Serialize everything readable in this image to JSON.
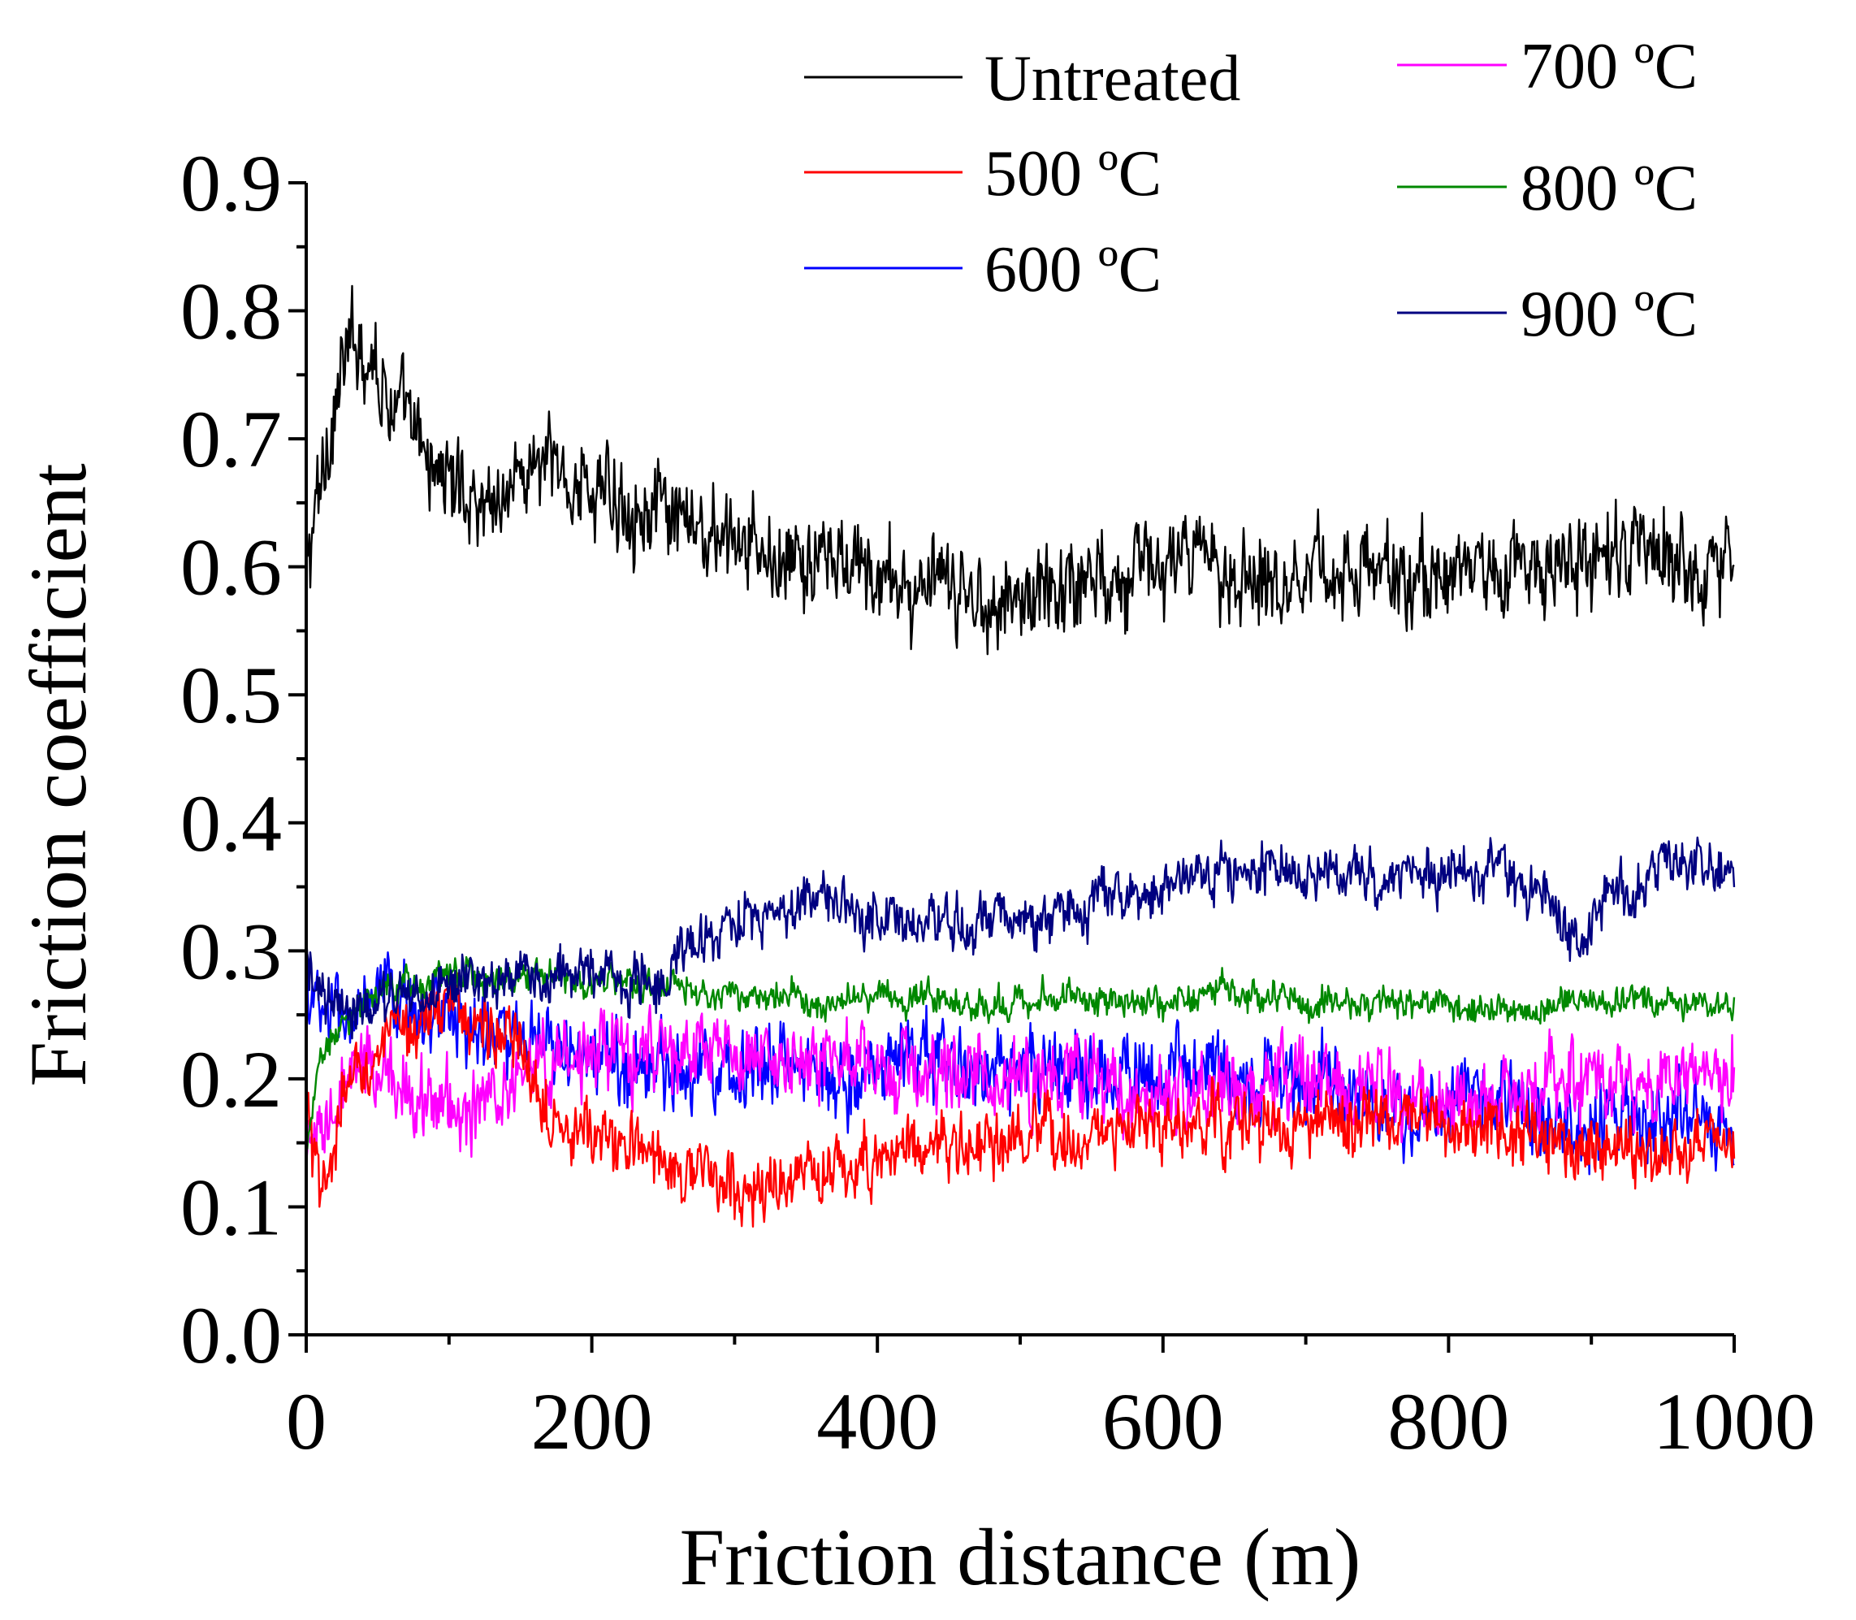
{
  "chart_data": {
    "type": "line",
    "title": "",
    "xlabel": "Friction distance (m)",
    "ylabel": "Friction coefficient",
    "xlim": [
      0,
      1000
    ],
    "ylim": [
      0.0,
      0.9
    ],
    "grid": false,
    "legend_position": "top-right",
    "x_ticks": [
      0,
      200,
      400,
      600,
      800,
      1000
    ],
    "x_tick_labels": [
      "0",
      "200",
      "400",
      "600",
      "800",
      "1000"
    ],
    "y_ticks": [
      0.0,
      0.1,
      0.2,
      0.3,
      0.4,
      0.5,
      0.6,
      0.7,
      0.8,
      0.9
    ],
    "y_tick_labels": [
      "0.0",
      "0.1",
      "0.2",
      "0.3",
      "0.4",
      "0.5",
      "0.6",
      "0.7",
      "0.8",
      "0.9"
    ],
    "series": [
      {
        "name": "Untreated",
        "color": "#000000",
        "noise": 0.035,
        "x": [
          0,
          5,
          15,
          25,
          35,
          45,
          60,
          80,
          100,
          120,
          140,
          160,
          180,
          200,
          230,
          260,
          300,
          340,
          380,
          420,
          460,
          500,
          540,
          580,
          620,
          660,
          700,
          740,
          780,
          820,
          860,
          900,
          940,
          980,
          1000
        ],
        "y": [
          0.59,
          0.63,
          0.7,
          0.75,
          0.78,
          0.77,
          0.73,
          0.69,
          0.67,
          0.65,
          0.66,
          0.68,
          0.67,
          0.66,
          0.65,
          0.63,
          0.62,
          0.6,
          0.6,
          0.585,
          0.575,
          0.575,
          0.59,
          0.6,
          0.605,
          0.595,
          0.6,
          0.595,
          0.59,
          0.6,
          0.6,
          0.605,
          0.61,
          0.6,
          0.61
        ]
      },
      {
        "name": "500 ºC",
        "color": "#ff0000",
        "noise": 0.025,
        "x": [
          0,
          5,
          10,
          20,
          30,
          50,
          70,
          90,
          110,
          130,
          150,
          170,
          190,
          210,
          250,
          290,
          310,
          340,
          380,
          420,
          460,
          500,
          550,
          600,
          650,
          700,
          750,
          800,
          850,
          900,
          950,
          1000
        ],
        "y": [
          0.18,
          0.14,
          0.1,
          0.15,
          0.2,
          0.22,
          0.24,
          0.26,
          0.25,
          0.24,
          0.22,
          0.18,
          0.16,
          0.15,
          0.14,
          0.12,
          0.11,
          0.12,
          0.13,
          0.15,
          0.145,
          0.15,
          0.155,
          0.16,
          0.165,
          0.16,
          0.17,
          0.16,
          0.155,
          0.15,
          0.145,
          0.15
        ]
      },
      {
        "name": "600 ºC",
        "color": "#0000ff",
        "noise": 0.03,
        "x": [
          0,
          10,
          30,
          60,
          100,
          140,
          180,
          220,
          260,
          300,
          340,
          380,
          420,
          460,
          500,
          540,
          580,
          620,
          660,
          700,
          740,
          780,
          820,
          860,
          900,
          940,
          980,
          1000
        ],
        "y": [
          0.27,
          0.25,
          0.25,
          0.26,
          0.25,
          0.23,
          0.22,
          0.21,
          0.21,
          0.21,
          0.21,
          0.2,
          0.22,
          0.21,
          0.2,
          0.21,
          0.2,
          0.21,
          0.2,
          0.2,
          0.18,
          0.17,
          0.19,
          0.17,
          0.16,
          0.17,
          0.17,
          0.16
        ]
      },
      {
        "name": "700 ºC",
        "color": "#ff00ff",
        "noise": 0.03,
        "x": [
          0,
          10,
          20,
          40,
          60,
          80,
          100,
          120,
          140,
          160,
          200,
          240,
          280,
          320,
          360,
          400,
          440,
          480,
          520,
          560,
          600,
          640,
          680,
          720,
          760,
          800,
          840,
          880,
          920,
          960,
          1000
        ],
        "y": [
          0.13,
          0.15,
          0.18,
          0.21,
          0.2,
          0.19,
          0.18,
          0.17,
          0.2,
          0.21,
          0.22,
          0.22,
          0.22,
          0.21,
          0.22,
          0.2,
          0.21,
          0.2,
          0.2,
          0.2,
          0.19,
          0.19,
          0.2,
          0.19,
          0.19,
          0.18,
          0.19,
          0.2,
          0.2,
          0.2,
          0.21
        ]
      },
      {
        "name": "800 ºC",
        "color": "#008800",
        "noise": 0.012,
        "x": [
          0,
          5,
          10,
          20,
          40,
          60,
          100,
          140,
          180,
          220,
          260,
          300,
          340,
          380,
          420,
          460,
          500,
          540,
          580,
          620,
          640,
          660,
          700,
          740,
          780,
          820,
          860,
          900,
          940,
          980,
          1000
        ],
        "y": [
          0.15,
          0.18,
          0.21,
          0.24,
          0.26,
          0.27,
          0.28,
          0.28,
          0.28,
          0.275,
          0.27,
          0.265,
          0.265,
          0.26,
          0.265,
          0.26,
          0.26,
          0.265,
          0.26,
          0.265,
          0.275,
          0.265,
          0.26,
          0.26,
          0.26,
          0.255,
          0.255,
          0.26,
          0.26,
          0.26,
          0.25
        ]
      },
      {
        "name": "900 ºC",
        "color": "#000080",
        "noise": 0.02,
        "x": [
          0,
          10,
          30,
          60,
          100,
          140,
          180,
          220,
          250,
          260,
          280,
          320,
          360,
          400,
          440,
          480,
          520,
          560,
          600,
          640,
          680,
          720,
          760,
          800,
          840,
          870,
          890,
          910,
          940,
          970,
          1000
        ],
        "y": [
          0.29,
          0.26,
          0.25,
          0.26,
          0.27,
          0.28,
          0.28,
          0.28,
          0.28,
          0.3,
          0.31,
          0.33,
          0.34,
          0.33,
          0.32,
          0.32,
          0.33,
          0.34,
          0.35,
          0.36,
          0.36,
          0.36,
          0.36,
          0.36,
          0.36,
          0.34,
          0.3,
          0.34,
          0.36,
          0.37,
          0.36
        ]
      }
    ]
  }
}
